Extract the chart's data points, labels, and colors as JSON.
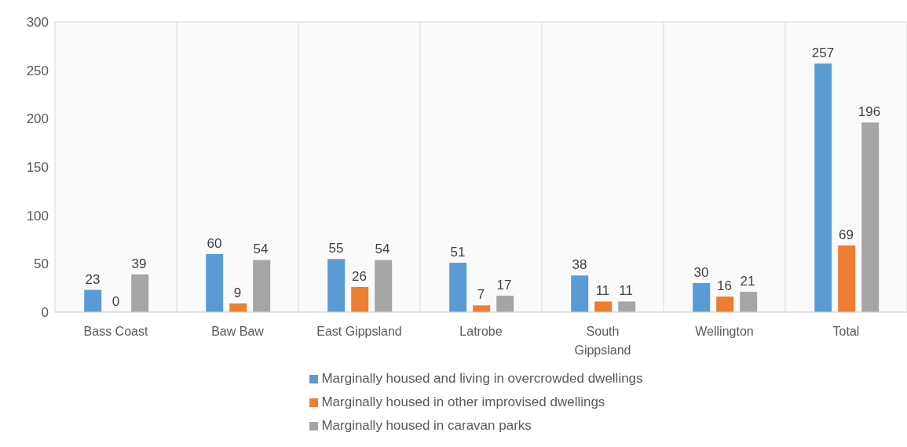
{
  "chart_data": {
    "type": "bar",
    "categories": [
      "Bass Coast",
      "Baw Baw",
      "East Gippsland",
      "Latrobe",
      "South Gippsland",
      "Wellington",
      "Total"
    ],
    "series": [
      {
        "name": "Marginally housed and living in overcrowded dwellings",
        "color": "#5b9bd5",
        "values": [
          23,
          60,
          55,
          51,
          38,
          30,
          257
        ]
      },
      {
        "name": "Marginally housed in other improvised dwellings",
        "color": "#ed7d31",
        "values": [
          0,
          9,
          26,
          7,
          11,
          16,
          69
        ]
      },
      {
        "name": "Marginally housed in caravan parks",
        "color": "#a5a5a5",
        "values": [
          39,
          54,
          54,
          17,
          11,
          21,
          196
        ]
      }
    ],
    "ylim": [
      0,
      300
    ],
    "yticks": [
      0,
      50,
      100,
      150,
      200,
      250,
      300
    ],
    "grid": true,
    "legend": "bottom",
    "data_labels": true
  }
}
